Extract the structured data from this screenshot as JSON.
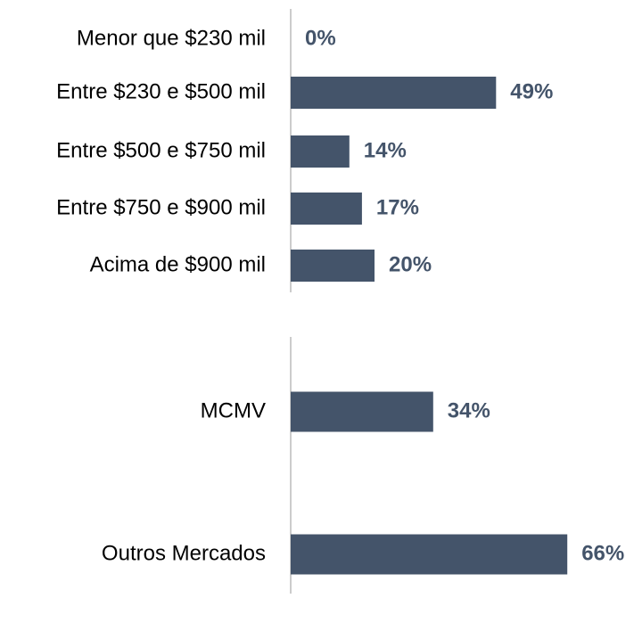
{
  "chart_data": [
    {
      "type": "bar",
      "orientation": "horizontal",
      "color": "#44546a",
      "categories": [
        "Menor que $230 mil",
        "Entre $230 e $500 mil",
        "Entre $500 e $750 mil",
        "Entre $750 e $900 mil",
        "Acima de $900 mil"
      ],
      "values": [
        0,
        49,
        14,
        17,
        20
      ],
      "value_labels": [
        "0%",
        "49%",
        "14%",
        "17%",
        "20%"
      ]
    },
    {
      "type": "bar",
      "orientation": "horizontal",
      "color": "#44546a",
      "categories": [
        "MCMV",
        "Outros Mercados"
      ],
      "values": [
        34,
        66
      ],
      "value_labels": [
        "34%",
        "66%"
      ]
    }
  ]
}
